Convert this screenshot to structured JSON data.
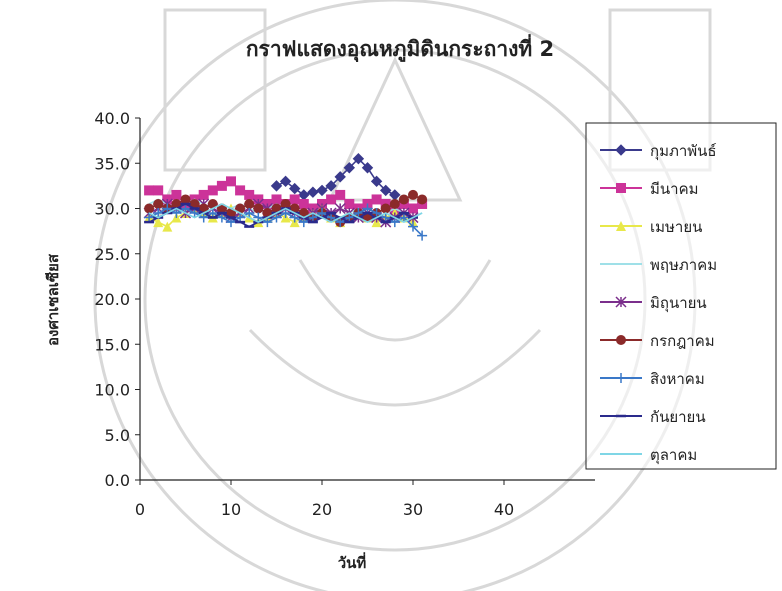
{
  "chart_data": {
    "type": "line",
    "title": "กราฟแสดงอุณหภูมิดินกระถางที่ 2",
    "xlabel": "วันที่",
    "ylabel": "องศาเซลเซียส",
    "xlim": [
      0,
      50
    ],
    "ylim": [
      0,
      40
    ],
    "x_ticks": [
      "0",
      "10",
      "20",
      "30",
      "40"
    ],
    "y_ticks": [
      "0.0",
      "5.0",
      "10.0",
      "15.0",
      "20.0",
      "25.0",
      "30.0",
      "35.0",
      "40.0"
    ],
    "legend_position": "right",
    "series": [
      {
        "name": "กุมภาพันธ์",
        "color": "#3a3a8c",
        "marker": "diamond",
        "x": [
          15,
          16,
          17,
          18,
          19,
          20,
          21,
          22,
          23,
          24,
          25,
          26,
          27,
          28
        ],
        "y": [
          32.5,
          33.0,
          32.2,
          31.5,
          31.8,
          32.0,
          32.5,
          33.5,
          34.5,
          35.5,
          34.5,
          33.0,
          32.0,
          31.5
        ]
      },
      {
        "name": "มีนาคม",
        "color": "#cc3399",
        "marker": "square",
        "x": [
          1,
          2,
          3,
          4,
          5,
          6,
          7,
          8,
          9,
          10,
          11,
          12,
          13,
          14,
          15,
          16,
          17,
          18,
          19,
          20,
          21,
          22,
          23,
          24,
          25,
          26,
          27,
          28,
          29,
          30,
          31
        ],
        "y": [
          32.0,
          32.0,
          31.0,
          31.5,
          30.5,
          31.0,
          31.5,
          32.0,
          32.5,
          33.0,
          32.0,
          31.5,
          31.0,
          30.5,
          31.0,
          30.5,
          31.0,
          30.5,
          30.0,
          30.5,
          31.0,
          31.5,
          30.5,
          30.0,
          30.5,
          31.0,
          30.5,
          30.0,
          30.5,
          30.0,
          30.5
        ]
      },
      {
        "name": "เมษายน",
        "color": "#e8e84a",
        "marker": "triangle",
        "x": [
          1,
          2,
          3,
          4,
          5,
          6,
          7,
          8,
          9,
          10,
          11,
          12,
          13,
          14,
          15,
          16,
          17,
          18,
          19,
          20,
          21,
          22,
          23,
          24,
          25,
          26,
          27,
          28,
          29,
          30
        ],
        "y": [
          29.0,
          28.5,
          28.0,
          29.0,
          29.5,
          30.0,
          29.5,
          29.0,
          29.5,
          30.0,
          29.5,
          29.0,
          28.5,
          29.0,
          29.5,
          29.0,
          28.5,
          29.0,
          29.5,
          30.0,
          29.0,
          28.5,
          29.0,
          29.5,
          29.0,
          28.5,
          29.0,
          29.5,
          29.0,
          28.5
        ]
      },
      {
        "name": "พฤษภาคม",
        "color": "#9fe0e8",
        "marker": "none",
        "x": [
          1,
          2,
          3,
          4,
          5,
          6,
          7,
          8,
          9,
          10,
          11,
          12,
          13,
          14,
          15,
          16,
          17,
          18,
          19,
          20,
          21,
          22,
          23,
          24,
          25,
          26,
          27,
          28,
          29,
          30,
          31
        ],
        "y": [
          30.5,
          31.0,
          30.5,
          30.0,
          30.5,
          31.0,
          30.5,
          30.0,
          29.5,
          30.0,
          30.5,
          30.0,
          29.5,
          30.0,
          30.5,
          30.0,
          29.5,
          29.0,
          29.5,
          30.0,
          29.5,
          29.0,
          29.5,
          30.0,
          29.5,
          29.0,
          29.5,
          30.0,
          29.5,
          29.0,
          29.5
        ]
      },
      {
        "name": "มิถุนายน",
        "color": "#7b2f8c",
        "marker": "asterisk",
        "x": [
          1,
          2,
          3,
          4,
          5,
          6,
          7,
          8,
          9,
          10,
          11,
          12,
          13,
          14,
          15,
          16,
          17,
          18,
          19,
          20,
          21,
          22,
          23,
          24,
          25,
          26,
          27,
          28,
          29,
          30
        ],
        "y": [
          29.5,
          30.0,
          30.5,
          30.0,
          29.5,
          30.0,
          30.5,
          30.0,
          29.5,
          29.0,
          29.5,
          30.0,
          30.5,
          30.0,
          29.5,
          30.0,
          29.5,
          29.0,
          29.5,
          30.0,
          29.5,
          30.0,
          29.5,
          29.0,
          29.5,
          29.0,
          28.5,
          29.0,
          29.5,
          29.0
        ]
      },
      {
        "name": "กรกฎาคม",
        "color": "#8b2a2a",
        "marker": "circle",
        "x": [
          1,
          2,
          3,
          4,
          5,
          6,
          7,
          8,
          9,
          10,
          11,
          12,
          13,
          14,
          15,
          16,
          17,
          18,
          19,
          20,
          21,
          22,
          23,
          24,
          25,
          26,
          27,
          28,
          29,
          30,
          31
        ],
        "y": [
          30.0,
          30.5,
          30.0,
          30.5,
          31.0,
          30.5,
          30.0,
          30.5,
          30.0,
          29.5,
          30.0,
          30.5,
          30.0,
          29.5,
          30.0,
          30.5,
          30.0,
          29.5,
          29.0,
          29.5,
          29.0,
          28.5,
          29.0,
          29.5,
          29.0,
          29.5,
          30.0,
          30.5,
          31.0,
          31.5,
          31.0
        ]
      },
      {
        "name": "สิงหาคม",
        "color": "#3a78c8",
        "marker": "plus",
        "x": [
          1,
          2,
          3,
          4,
          5,
          6,
          7,
          8,
          9,
          10,
          11,
          12,
          13,
          14,
          15,
          16,
          17,
          18,
          19,
          20,
          21,
          22,
          23,
          24,
          25,
          26,
          27,
          28,
          29,
          30,
          31
        ],
        "y": [
          29.0,
          29.5,
          30.0,
          29.5,
          30.0,
          29.5,
          29.0,
          29.5,
          29.0,
          28.5,
          29.0,
          29.5,
          29.0,
          28.5,
          29.0,
          29.5,
          29.0,
          28.5,
          29.0,
          29.5,
          29.0,
          28.5,
          29.0,
          29.5,
          30.0,
          29.5,
          29.0,
          28.5,
          29.0,
          28.0,
          27.0
        ]
      },
      {
        "name": "กันยายน",
        "color": "#2a2a8c",
        "marker": "dash",
        "x": [
          1,
          2,
          3,
          4,
          5,
          6,
          7,
          8,
          9,
          10,
          11,
          12,
          13,
          14,
          15,
          16,
          17,
          18,
          19,
          20,
          21,
          22,
          23,
          24,
          25,
          26,
          27,
          28,
          29,
          30
        ],
        "y": [
          28.5,
          29.0,
          29.5,
          30.0,
          30.5,
          30.0,
          29.5,
          29.0,
          29.5,
          29.0,
          28.5,
          28.0,
          28.5,
          29.0,
          29.5,
          30.0,
          29.5,
          29.0,
          28.5,
          29.0,
          29.5,
          29.0,
          28.5,
          29.0,
          29.5,
          29.0,
          28.5,
          29.0,
          29.5,
          29.0
        ]
      },
      {
        "name": "ตุลาคม",
        "color": "#7fd6e6",
        "marker": "none",
        "x": [
          1,
          2,
          3,
          4,
          5,
          6,
          7,
          8,
          9,
          10,
          11,
          12,
          13,
          14,
          15,
          16,
          17,
          18,
          19,
          20,
          21,
          22,
          23,
          24,
          25,
          26,
          27,
          28,
          29,
          30,
          31
        ],
        "y": [
          29.5,
          29.0,
          29.5,
          30.0,
          29.5,
          29.0,
          29.5,
          30.0,
          30.5,
          30.0,
          29.5,
          29.0,
          28.5,
          29.0,
          29.5,
          30.0,
          29.5,
          29.0,
          29.5,
          29.0,
          28.5,
          29.0,
          29.5,
          29.0,
          28.5,
          29.0,
          29.5,
          29.0,
          28.5,
          29.0,
          29.5
        ]
      }
    ]
  }
}
